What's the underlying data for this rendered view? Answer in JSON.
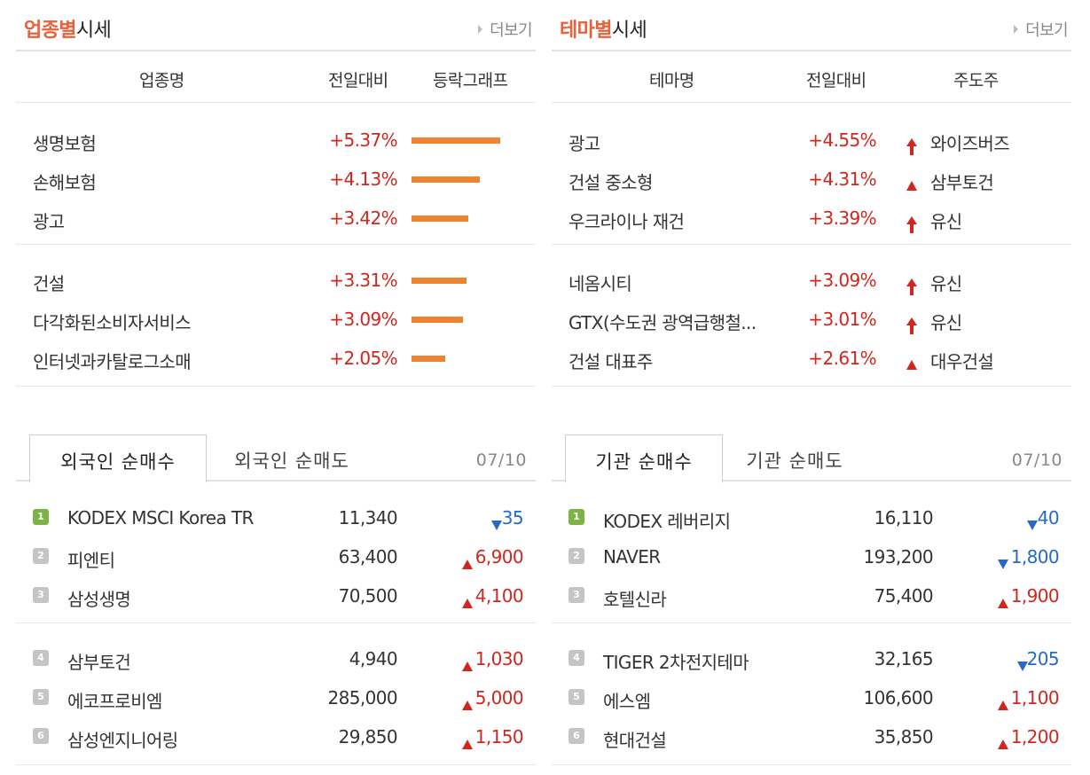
{
  "sector": {
    "title_hl": "업종별",
    "title_rest": "시세",
    "more": "더보기",
    "headers": [
      "업종명",
      "전일대비",
      "등락그래프"
    ],
    "rows": [
      {
        "name": "생명보험",
        "change": "+5.37%",
        "pct": 5.37
      },
      {
        "name": "손해보험",
        "change": "+4.13%",
        "pct": 4.13
      },
      {
        "name": "광고",
        "change": "+3.42%",
        "pct": 3.42
      },
      {
        "name": "건설",
        "change": "+3.31%",
        "pct": 3.31
      },
      {
        "name": "다각화된소비자서비스",
        "change": "+3.09%",
        "pct": 3.09
      },
      {
        "name": "인터넷과카탈로그소매",
        "change": "+2.05%",
        "pct": 2.05
      }
    ]
  },
  "theme": {
    "title_hl": "테마별",
    "title_rest": "시세",
    "more": "더보기",
    "headers": [
      "테마명",
      "전일대비",
      "주도주"
    ],
    "rows": [
      {
        "name": "광고",
        "change": "+4.55%",
        "leader": "와이즈버즈",
        "icon": "arrow-up-icon"
      },
      {
        "name": "건설 중소형",
        "change": "+4.31%",
        "leader": "삼부토건",
        "icon": "triangle-up-icon"
      },
      {
        "name": "우크라이나 재건",
        "change": "+3.39%",
        "leader": "유신",
        "icon": "arrow-up-icon"
      },
      {
        "name": "네옴시티",
        "change": "+3.09%",
        "leader": "유신",
        "icon": "arrow-up-icon"
      },
      {
        "name": "GTX(수도권 광역급행철...",
        "change": "+3.01%",
        "leader": "유신",
        "icon": "arrow-up-icon"
      },
      {
        "name": "건설 대표주",
        "change": "+2.61%",
        "leader": "대우건설",
        "icon": "triangle-up-icon"
      }
    ]
  },
  "foreign": {
    "tab_active": "외국인 순매수",
    "tab_inactive": "외국인 순매도",
    "date": "07/10",
    "rows": [
      {
        "rank": "1",
        "name": "KODEX MSCI Korea TR",
        "price": "11,340",
        "dir": "down",
        "change": "35"
      },
      {
        "rank": "2",
        "name": "피엔티",
        "price": "63,400",
        "dir": "up",
        "change": "6,900"
      },
      {
        "rank": "3",
        "name": "삼성생명",
        "price": "70,500",
        "dir": "up",
        "change": "4,100"
      },
      {
        "rank": "4",
        "name": "삼부토건",
        "price": "4,940",
        "dir": "up",
        "change": "1,030"
      },
      {
        "rank": "5",
        "name": "에코프로비엠",
        "price": "285,000",
        "dir": "up",
        "change": "5,000"
      },
      {
        "rank": "6",
        "name": "삼성엔지니어링",
        "price": "29,850",
        "dir": "up",
        "change": "1,150"
      }
    ]
  },
  "inst": {
    "tab_active": "기관 순매수",
    "tab_inactive": "기관 순매도",
    "date": "07/10",
    "rows": [
      {
        "rank": "1",
        "name": "KODEX 레버리지",
        "price": "16,110",
        "dir": "down",
        "change": "40"
      },
      {
        "rank": "2",
        "name": "NAVER",
        "price": "193,200",
        "dir": "down",
        "change": "1,800"
      },
      {
        "rank": "3",
        "name": "호텔신라",
        "price": "75,400",
        "dir": "up",
        "change": "1,900"
      },
      {
        "rank": "4",
        "name": "TIGER 2차전지테마",
        "price": "32,165",
        "dir": "down",
        "change": "205"
      },
      {
        "rank": "5",
        "name": "에스엠",
        "price": "106,600",
        "dir": "up",
        "change": "1,100"
      },
      {
        "rank": "6",
        "name": "현대건설",
        "price": "35,850",
        "dir": "up",
        "change": "1,200"
      }
    ]
  }
}
